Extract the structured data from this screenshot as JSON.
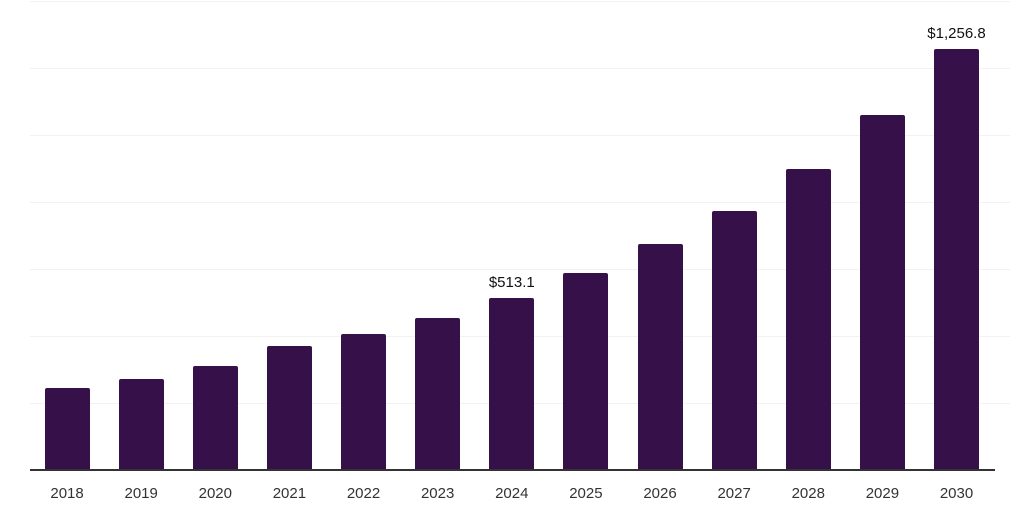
{
  "chart_data": {
    "type": "bar",
    "title": "",
    "xlabel": "",
    "ylabel": "",
    "categories": [
      "2018",
      "2019",
      "2020",
      "2021",
      "2022",
      "2023",
      "2024",
      "2025",
      "2026",
      "2027",
      "2028",
      "2029",
      "2030"
    ],
    "values": [
      246,
      272,
      310,
      370,
      405,
      453,
      513.1,
      589,
      674,
      773,
      900,
      1060,
      1256.8
    ],
    "data_labels": {
      "2024": "$513.1",
      "2030": "$1,256.8"
    },
    "ylim": [
      0,
      1400
    ],
    "grid_step": 200,
    "grid_on": true,
    "legend_position": "none",
    "bar_color": "#361149",
    "axis_color": "#333333",
    "grid_color": "#f2f2f2",
    "tick_label_color": "#333333",
    "data_label_color": "#111111",
    "background_color": "#ffffff"
  }
}
